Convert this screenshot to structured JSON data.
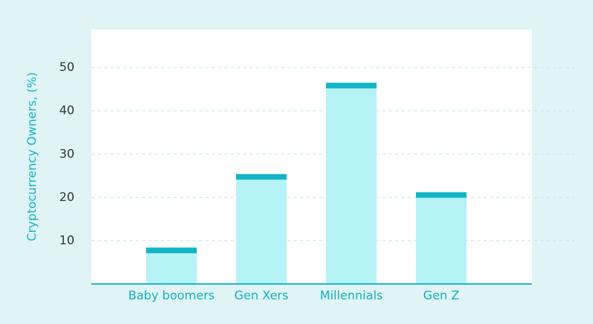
{
  "chart_data": {
    "type": "bar",
    "y_label": "Cryptocurrency Owners, (%)",
    "categories": [
      "Baby boomers",
      "Gen Xers",
      "Millennials",
      "Gen Z"
    ],
    "values": [
      8.4,
      25.4,
      46.5,
      21.2
    ],
    "color": "#b6f3f6",
    "cap_color": "#12b5c6",
    "ylim": [
      0,
      58.8
    ],
    "yticks": [
      10,
      20,
      30,
      40,
      50
    ],
    "grid": true
  }
}
